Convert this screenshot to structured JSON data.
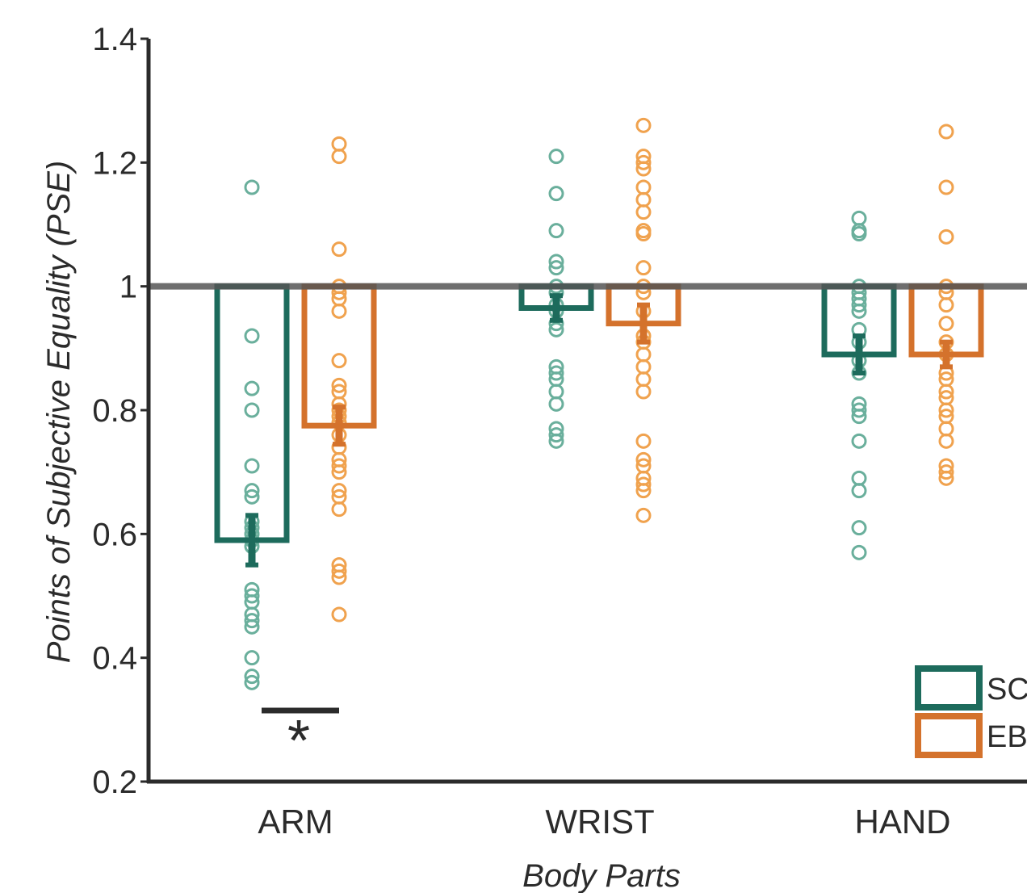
{
  "colors": {
    "SC_bar": "#1d6b5c",
    "SC_dot": "#6aaf9c",
    "EB_bar": "#d4722c",
    "EB_dot": "#f0a24e",
    "axis": "#2b2b2b",
    "reference": "#555555"
  },
  "chart_data": {
    "type": "bar",
    "title": "",
    "xlabel": "Body Parts",
    "ylabel": "Points of Subjective Equality (PSE)",
    "ylim": [
      0.2,
      1.4
    ],
    "y_ticks": [
      "0.2",
      "0.4",
      "0.6",
      "0.8",
      "1",
      "1.2",
      "1.4"
    ],
    "baseline": 1.0,
    "categories": [
      "ARM",
      "WRIST",
      "HAND"
    ],
    "legend_position": "bottom-right",
    "significance": [
      {
        "category": "ARM",
        "label": "*"
      }
    ],
    "series": [
      {
        "name": "SC",
        "values": [
          0.59,
          0.965,
          0.89
        ],
        "sem": [
          0.04,
          0.02,
          0.03
        ],
        "points": [
          [
            1.16,
            0.92,
            0.835,
            0.8,
            0.71,
            0.67,
            0.66,
            0.62,
            0.61,
            0.6,
            0.59,
            0.58,
            0.51,
            0.5,
            0.49,
            0.47,
            0.46,
            0.45,
            0.4,
            0.37,
            0.36
          ],
          [
            1.21,
            1.15,
            1.09,
            1.04,
            1.03,
            1.0,
            0.99,
            0.97,
            0.96,
            0.94,
            0.93,
            0.87,
            0.86,
            0.85,
            0.83,
            0.81,
            0.77,
            0.76,
            0.75
          ],
          [
            1.11,
            1.09,
            1.085,
            1.0,
            0.99,
            0.98,
            0.97,
            0.96,
            0.93,
            0.91,
            0.88,
            0.86,
            0.81,
            0.8,
            0.79,
            0.75,
            0.69,
            0.67,
            0.61,
            0.57
          ]
        ]
      },
      {
        "name": "EB",
        "values": [
          0.775,
          0.94,
          0.89
        ],
        "sem": [
          0.03,
          0.03,
          0.02
        ],
        "points": [
          [
            1.23,
            1.21,
            1.06,
            1.0,
            0.99,
            0.98,
            0.96,
            0.88,
            0.84,
            0.83,
            0.81,
            0.8,
            0.79,
            0.78,
            0.76,
            0.74,
            0.72,
            0.71,
            0.7,
            0.67,
            0.66,
            0.64,
            0.55,
            0.54,
            0.53,
            0.47
          ],
          [
            1.26,
            1.21,
            1.2,
            1.19,
            1.16,
            1.14,
            1.12,
            1.09,
            1.085,
            1.03,
            1.0,
            0.99,
            0.96,
            0.92,
            0.91,
            0.89,
            0.87,
            0.85,
            0.83,
            0.75,
            0.72,
            0.71,
            0.69,
            0.68,
            0.67,
            0.63
          ],
          [
            1.25,
            1.16,
            1.08,
            1.0,
            0.99,
            0.97,
            0.94,
            0.91,
            0.89,
            0.86,
            0.85,
            0.83,
            0.82,
            0.8,
            0.79,
            0.77,
            0.75,
            0.71,
            0.7,
            0.69
          ]
        ]
      }
    ]
  }
}
